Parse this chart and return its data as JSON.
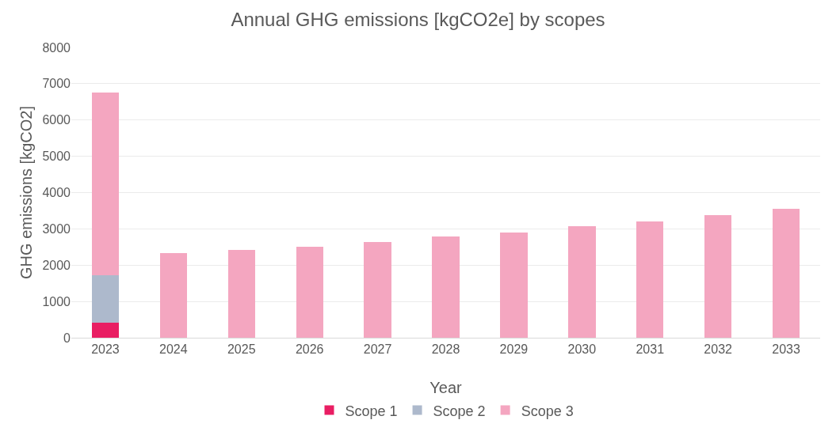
{
  "chart_data": {
    "type": "bar",
    "title": "Annual GHG emissions [kgCO2e] by scopes",
    "xlabel": "Year",
    "ylabel": "GHG emissions [kgCO2]",
    "categories": [
      "2023",
      "2024",
      "2025",
      "2026",
      "2027",
      "2028",
      "2029",
      "2030",
      "2031",
      "2032",
      "2033"
    ],
    "series": [
      {
        "name": "Scope 1",
        "color": "#e91e63",
        "values": [
          420,
          null,
          null,
          null,
          null,
          null,
          null,
          null,
          null,
          null,
          null
        ]
      },
      {
        "name": "Scope 2",
        "color": "#adb9cc",
        "values": [
          1310,
          null,
          null,
          null,
          null,
          null,
          null,
          null,
          null,
          null,
          null
        ]
      },
      {
        "name": "Scope 3",
        "color": "#f4a6c0",
        "values": [
          5020,
          2330,
          2420,
          2510,
          2640,
          2780,
          2910,
          3070,
          3200,
          3370,
          3550
        ]
      }
    ],
    "stacked": true,
    "ylim": [
      0,
      8000
    ],
    "yticks": [
      0,
      1000,
      2000,
      3000,
      4000,
      5000,
      6000,
      7000,
      8000
    ],
    "grid": "y",
    "legend": "bottom"
  }
}
